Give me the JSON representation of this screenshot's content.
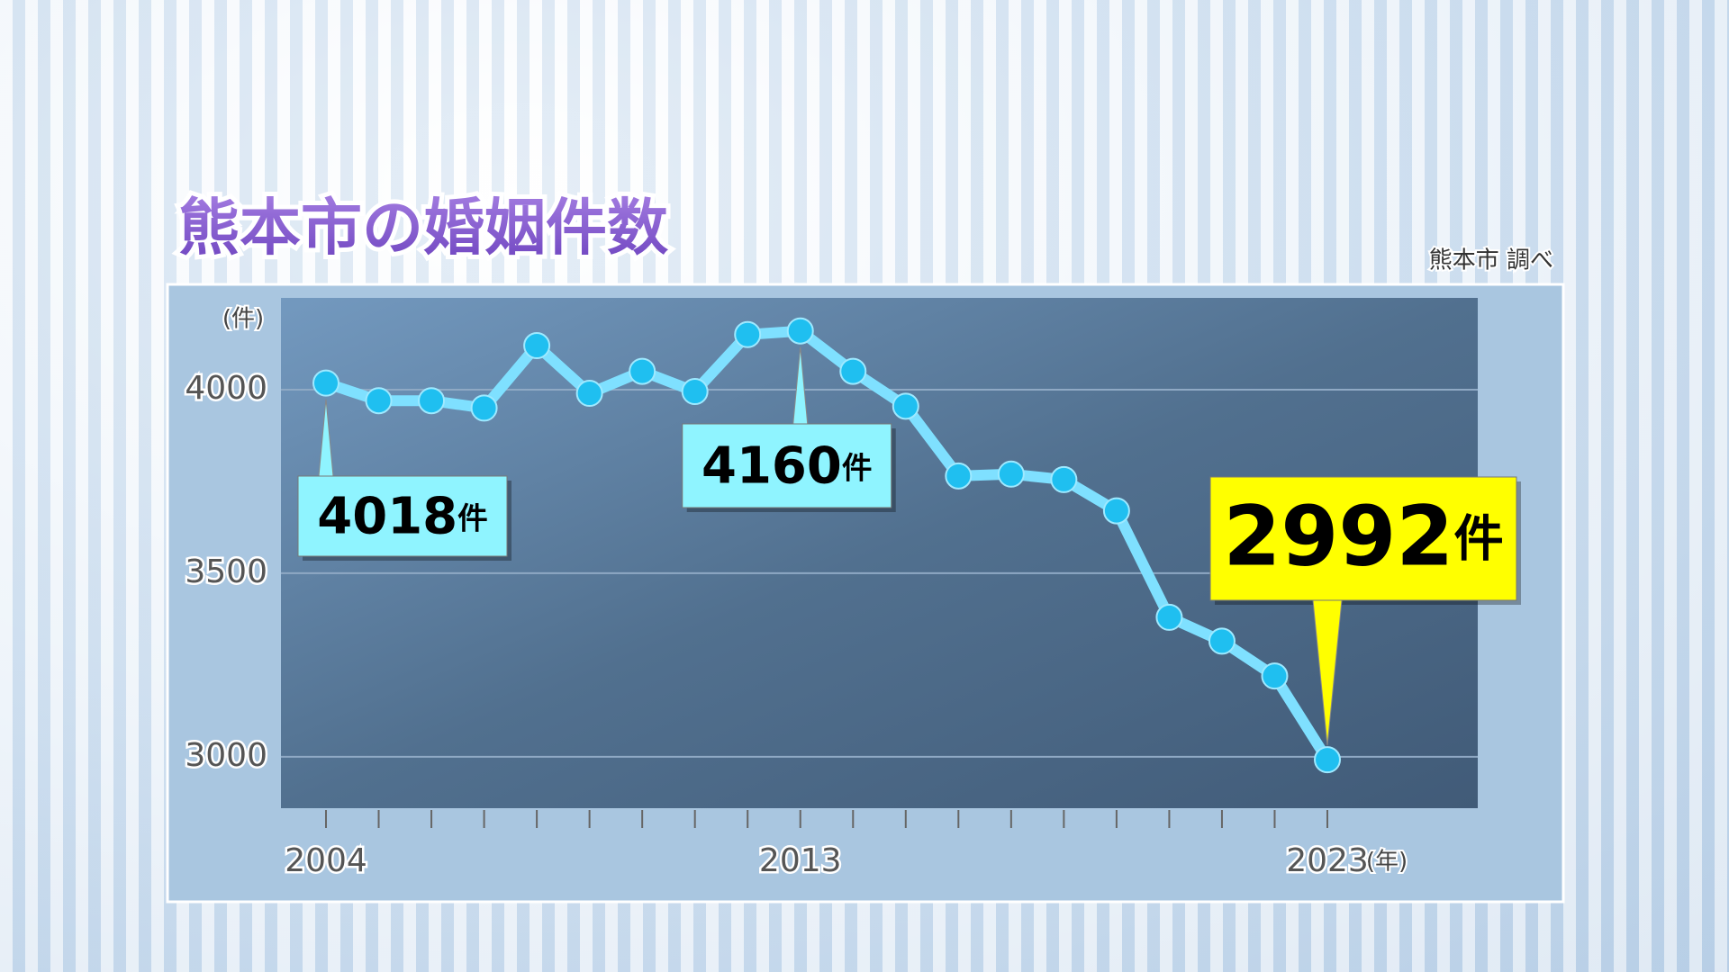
{
  "chart_data": {
    "type": "line",
    "title": "熊本市の婚姻件数",
    "source": "熊本市 調べ",
    "y_unit": "(件)",
    "x_unit": "(年)",
    "categories": [
      "2004",
      null,
      null,
      null,
      null,
      null,
      null,
      null,
      null,
      "2013",
      null,
      null,
      null,
      null,
      null,
      null,
      null,
      null,
      null,
      "2023"
    ],
    "series": [
      {
        "name": null,
        "color": "#7fe0ff",
        "values": [
          4018,
          3970,
          3970,
          3950,
          4120,
          3990,
          4050,
          3995,
          4150,
          4160,
          4050,
          3955,
          3765,
          3770,
          3755,
          3670,
          3380,
          3315,
          3220,
          2992
        ],
        "value_labels": [
          "4018件",
          null,
          null,
          null,
          null,
          null,
          null,
          null,
          null,
          "4160件",
          null,
          null,
          null,
          null,
          null,
          null,
          null,
          null,
          null,
          "2992件"
        ]
      }
    ],
    "ylim": [
      2860,
      4250
    ],
    "yticks": [
      3000,
      3500,
      4000
    ],
    "grid": true
  }
}
